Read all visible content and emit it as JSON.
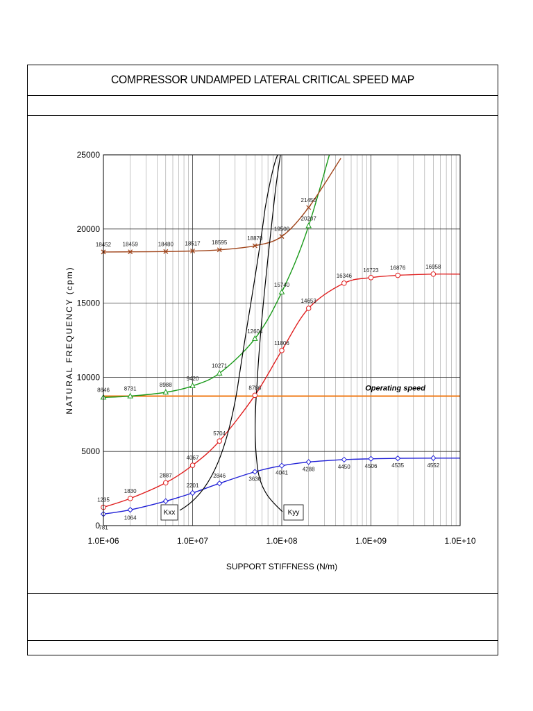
{
  "title": "COMPRESSOR UNDAMPED LATERAL CRITICAL SPEED MAP",
  "chart_data": {
    "type": "line",
    "x_scale": "log",
    "xlabel": "SUPPORT STIFFNESS (N/m)",
    "ylabel": "NATURAL FREQUENCY (cpm)",
    "xlim": [
      1000000,
      10000000000
    ],
    "ylim": [
      0,
      25000
    ],
    "x_tick_labels": [
      "1.0E+06",
      "1.0E+07",
      "1.0E+08",
      "1.0E+09",
      "1.0E+10"
    ],
    "y_tick_labels": [
      "0",
      "5000",
      "10000",
      "15000",
      "20000",
      "25000"
    ],
    "y_ticks": [
      0,
      5000,
      10000,
      15000,
      20000,
      25000
    ],
    "grid": true,
    "series": [
      {
        "color": "#1f1fd6",
        "marker": "diamond",
        "x": [
          1000000,
          2000000,
          5000000,
          10000000,
          20000000,
          50000000,
          100000000,
          200000000,
          500000000,
          1000000000,
          2000000000,
          5000000000
        ],
        "y": [
          781,
          1064,
          1650,
          2201,
          2846,
          3630,
          4041,
          4288,
          4450,
          4506,
          4535,
          4552
        ],
        "labels": [
          "781",
          "1064",
          "",
          "2201",
          "2846",
          "3630",
          "4041",
          "4288",
          "4450",
          "4506",
          "4535",
          "4552"
        ]
      },
      {
        "color": "#e02020",
        "marker": "circle",
        "x": [
          1000000,
          2000000,
          5000000,
          10000000,
          20000000,
          50000000,
          100000000,
          200000000,
          500000000,
          1000000000,
          2000000000,
          5000000000
        ],
        "y": [
          1235,
          1830,
          2887,
          4067,
          5704,
          8786,
          11806,
          14653,
          16346,
          16723,
          16876,
          16958
        ],
        "labels": [
          "1235",
          "1830",
          "2887",
          "4067",
          "5704",
          "8786",
          "11806",
          "14653",
          "16346",
          "16723",
          "16876",
          "16958"
        ]
      },
      {
        "color": "#1a9a1a",
        "marker": "triangle",
        "x": [
          1000000,
          2000000,
          5000000,
          10000000,
          20000000,
          50000000,
          100000000,
          200000000
        ],
        "y": [
          8646,
          8731,
          8988,
          9420,
          10271,
          12604,
          15740,
          20207
        ],
        "labels": [
          "8646",
          "8731",
          "8988",
          "9420",
          "10271",
          "12604",
          "15740",
          "20207"
        ]
      },
      {
        "color": "#a0441a",
        "marker": "x",
        "x": [
          1000000,
          2000000,
          5000000,
          10000000,
          20000000,
          50000000,
          100000000,
          200000000
        ],
        "y": [
          18452,
          18459,
          18480,
          18517,
          18595,
          18870,
          19500,
          21450
        ],
        "labels": [
          "18452",
          "18459",
          "18480",
          "18517",
          "18595",
          "18870",
          "19500",
          "21450"
        ]
      }
    ],
    "operating_speed": {
      "label": "Operating speed",
      "value": 8730,
      "color": "#f07a14"
    },
    "stiffness_curves": [
      {
        "label": "Kxx",
        "color": "#000000"
      },
      {
        "label": "Kyy",
        "color": "#000000"
      }
    ]
  }
}
